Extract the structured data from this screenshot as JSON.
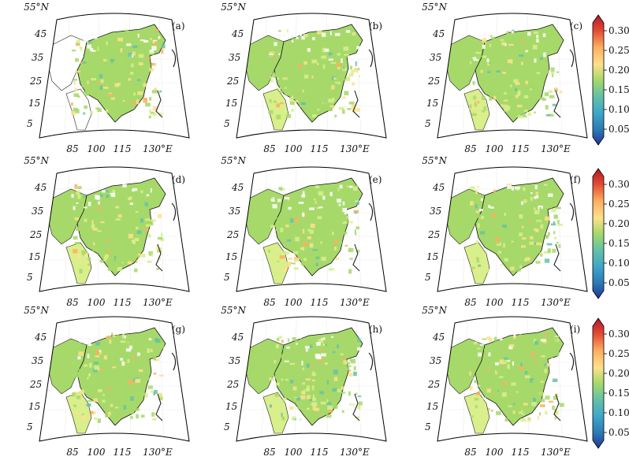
{
  "panels": [
    {
      "id": "a",
      "label": "(a)"
    },
    {
      "id": "b",
      "label": "(b)"
    },
    {
      "id": "c",
      "label": "(c)"
    },
    {
      "id": "d",
      "label": "(d)"
    },
    {
      "id": "e",
      "label": "(e)"
    },
    {
      "id": "f",
      "label": "(f)"
    },
    {
      "id": "g",
      "label": "(g)"
    },
    {
      "id": "h",
      "label": "(h)"
    },
    {
      "id": "i",
      "label": "(i)"
    }
  ],
  "lat_ticks": [
    "55°N",
    "45",
    "35",
    "25",
    "15",
    "5"
  ],
  "lon_ticks": [
    "85",
    "100",
    "115",
    "130°E"
  ],
  "colorbar": {
    "ticks": [
      "0.30",
      "0.25",
      "0.20",
      "0.15",
      "0.10",
      "0.05"
    ],
    "colors": [
      "#b2182b",
      "#e34a33",
      "#fdae61",
      "#fee08b",
      "#d9ef8b",
      "#a6d96a",
      "#66c2a5",
      "#3fa7c9",
      "#2c7bb6",
      "#253494"
    ]
  }
}
